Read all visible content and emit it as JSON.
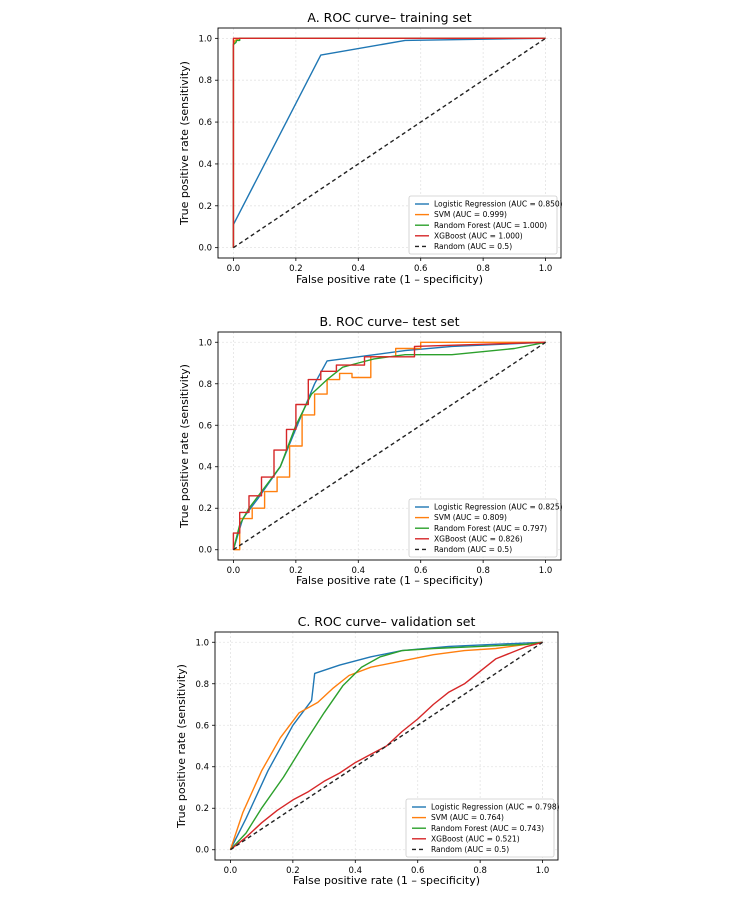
{
  "chart_data": [
    {
      "type": "line",
      "title": "A. ROC curve– training set",
      "xlabel": "False positive rate (1 – specificity)",
      "ylabel": "True positive rate (sensitivity)",
      "xlim": [
        0,
        1
      ],
      "ylim": [
        0,
        1
      ],
      "xticks": [
        "0.0",
        "0.2",
        "0.4",
        "0.6",
        "0.8",
        "1.0"
      ],
      "yticks": [
        "0.0",
        "0.2",
        "0.4",
        "0.6",
        "0.8",
        "1.0"
      ],
      "grid": true,
      "legend_position": "lower-right",
      "series": [
        {
          "name": "Logistic Regression",
          "legend": "Logistic Regression (AUC = 0.850)",
          "color": "#1f77b4",
          "dash": "",
          "x": [
            0,
            0,
            0.28,
            0.55,
            1.0
          ],
          "y": [
            0,
            0.11,
            0.92,
            0.99,
            1.0
          ]
        },
        {
          "name": "SVM",
          "legend": "SVM (AUC = 0.999)",
          "color": "#ff7f0e",
          "dash": "",
          "x": [
            0,
            0,
            0.005,
            0.02,
            1.0
          ],
          "y": [
            0,
            0.97,
            0.99,
            1.0,
            1.0
          ]
        },
        {
          "name": "Random Forest",
          "legend": "Random Forest (AUC = 1.000)",
          "color": "#2ca02c",
          "dash": "",
          "x": [
            0,
            0,
            0.008,
            0.01,
            0.02,
            0.02,
            1.0
          ],
          "y": [
            0,
            0.97,
            0.98,
            0.99,
            0.99,
            1.0,
            1.0
          ]
        },
        {
          "name": "XGBoost",
          "legend": "XGBoost (AUC = 1.000)",
          "color": "#d62728",
          "dash": "",
          "x": [
            0,
            0,
            1.0
          ],
          "y": [
            0,
            1.0,
            1.0
          ]
        },
        {
          "name": "Random",
          "legend": "Random (AUC = 0.5)",
          "color": "#222222",
          "dash": "4 3",
          "x": [
            0,
            1
          ],
          "y": [
            0,
            1
          ]
        }
      ]
    },
    {
      "type": "line",
      "title": "B. ROC curve– test set",
      "xlabel": "False positive rate (1 – specificity)",
      "ylabel": "True positive rate (sensitivity)",
      "xlim": [
        0,
        1
      ],
      "ylim": [
        0,
        1
      ],
      "xticks": [
        "0.0",
        "0.2",
        "0.4",
        "0.6",
        "0.8",
        "1.0"
      ],
      "yticks": [
        "0.0",
        "0.2",
        "0.4",
        "0.6",
        "0.8",
        "1.0"
      ],
      "grid": true,
      "legend_position": "lower-right",
      "series": [
        {
          "name": "Logistic Regression",
          "legend": "Logistic Regression (AUC = 0.825)",
          "color": "#1f77b4",
          "dash": "",
          "x": [
            0,
            0.03,
            0.08,
            0.15,
            0.21,
            0.26,
            0.3,
            0.4,
            0.55,
            0.7,
            1.0
          ],
          "y": [
            0,
            0.15,
            0.25,
            0.4,
            0.62,
            0.8,
            0.91,
            0.93,
            0.96,
            0.98,
            1.0
          ]
        },
        {
          "name": "SVM",
          "legend": "SVM (AUC = 0.809)",
          "color": "#ff7f0e",
          "dash": "",
          "x": [
            0,
            0.02,
            0.02,
            0.06,
            0.06,
            0.1,
            0.1,
            0.14,
            0.14,
            0.18,
            0.18,
            0.22,
            0.22,
            0.26,
            0.26,
            0.3,
            0.3,
            0.34,
            0.34,
            0.38,
            0.38,
            0.44,
            0.44,
            0.52,
            0.52,
            0.6,
            0.6,
            1.0
          ],
          "y": [
            0,
            0,
            0.15,
            0.15,
            0.2,
            0.2,
            0.28,
            0.28,
            0.35,
            0.35,
            0.5,
            0.5,
            0.65,
            0.65,
            0.75,
            0.75,
            0.82,
            0.82,
            0.85,
            0.85,
            0.83,
            0.83,
            0.93,
            0.93,
            0.97,
            0.97,
            1.0,
            1.0
          ]
        },
        {
          "name": "Random Forest",
          "legend": "Random Forest (AUC = 0.797)",
          "color": "#2ca02c",
          "dash": "",
          "x": [
            0,
            0.02,
            0.05,
            0.1,
            0.15,
            0.2,
            0.25,
            0.3,
            0.35,
            0.4,
            0.45,
            0.55,
            0.7,
            0.9,
            1.0
          ],
          "y": [
            0,
            0.12,
            0.2,
            0.3,
            0.4,
            0.6,
            0.75,
            0.82,
            0.88,
            0.9,
            0.92,
            0.94,
            0.94,
            0.97,
            1.0
          ]
        },
        {
          "name": "XGBoost",
          "legend": "XGBoost (AUC = 0.826)",
          "color": "#d62728",
          "dash": "",
          "x": [
            0,
            0,
            0.02,
            0.02,
            0.05,
            0.05,
            0.09,
            0.09,
            0.13,
            0.13,
            0.17,
            0.17,
            0.2,
            0.2,
            0.24,
            0.24,
            0.28,
            0.28,
            0.33,
            0.33,
            0.42,
            0.42,
            0.58,
            0.58,
            1.0
          ],
          "y": [
            0,
            0.08,
            0.08,
            0.18,
            0.18,
            0.26,
            0.26,
            0.35,
            0.35,
            0.48,
            0.48,
            0.58,
            0.58,
            0.7,
            0.7,
            0.82,
            0.82,
            0.86,
            0.86,
            0.89,
            0.89,
            0.93,
            0.93,
            0.98,
            1.0
          ]
        },
        {
          "name": "Random",
          "legend": "Random (AUC = 0.5)",
          "color": "#222222",
          "dash": "4 3",
          "x": [
            0,
            1
          ],
          "y": [
            0,
            1
          ]
        }
      ]
    },
    {
      "type": "line",
      "title": "C. ROC curve– validation set",
      "xlabel": "False positive rate (1 – specificity)",
      "ylabel": "True positive rate (sensitivity)",
      "xlim": [
        0,
        1
      ],
      "ylim": [
        0,
        1
      ],
      "xticks": [
        "0.0",
        "0.2",
        "0.4",
        "0.6",
        "0.8",
        "1.0"
      ],
      "yticks": [
        "0.0",
        "0.2",
        "0.4",
        "0.6",
        "0.8",
        "1.0"
      ],
      "grid": true,
      "legend_position": "lower-right",
      "series": [
        {
          "name": "Logistic Regression",
          "legend": "Logistic Regression (AUC = 0.798)",
          "color": "#1f77b4",
          "dash": "",
          "x": [
            0,
            0.05,
            0.12,
            0.2,
            0.26,
            0.27,
            0.35,
            0.45,
            0.55,
            0.7,
            0.85,
            1.0
          ],
          "y": [
            0,
            0.15,
            0.38,
            0.6,
            0.72,
            0.85,
            0.89,
            0.93,
            0.96,
            0.98,
            0.99,
            1.0
          ]
        },
        {
          "name": "SVM",
          "legend": "SVM (AUC = 0.764)",
          "color": "#ff7f0e",
          "dash": "",
          "x": [
            0,
            0.04,
            0.1,
            0.16,
            0.22,
            0.28,
            0.33,
            0.38,
            0.45,
            0.55,
            0.65,
            0.75,
            0.85,
            0.95,
            1.0
          ],
          "y": [
            0,
            0.18,
            0.38,
            0.54,
            0.66,
            0.71,
            0.78,
            0.84,
            0.88,
            0.91,
            0.94,
            0.96,
            0.97,
            0.99,
            1.0
          ]
        },
        {
          "name": "Random Forest",
          "legend": "Random Forest (AUC = 0.743)",
          "color": "#2ca02c",
          "dash": "",
          "x": [
            0,
            0.05,
            0.1,
            0.17,
            0.24,
            0.3,
            0.36,
            0.42,
            0.48,
            0.55,
            0.65,
            0.8,
            0.95,
            1.0
          ],
          "y": [
            0,
            0.08,
            0.2,
            0.35,
            0.52,
            0.66,
            0.79,
            0.88,
            0.93,
            0.96,
            0.97,
            0.98,
            0.99,
            1.0
          ]
        },
        {
          "name": "XGBoost",
          "legend": "XGBoost (AUC = 0.521)",
          "color": "#d62728",
          "dash": "",
          "x": [
            0,
            0.05,
            0.1,
            0.15,
            0.2,
            0.25,
            0.3,
            0.35,
            0.4,
            0.45,
            0.5,
            0.55,
            0.6,
            0.65,
            0.7,
            0.75,
            0.8,
            0.85,
            0.9,
            0.95,
            1.0
          ],
          "y": [
            0,
            0.06,
            0.13,
            0.19,
            0.24,
            0.28,
            0.33,
            0.37,
            0.42,
            0.46,
            0.5,
            0.57,
            0.63,
            0.7,
            0.76,
            0.8,
            0.86,
            0.92,
            0.95,
            0.98,
            1.0
          ]
        },
        {
          "name": "Random",
          "legend": "Random (AUC = 0.5)",
          "color": "#222222",
          "dash": "4 3",
          "x": [
            0,
            1
          ],
          "y": [
            0,
            1
          ]
        }
      ]
    }
  ]
}
